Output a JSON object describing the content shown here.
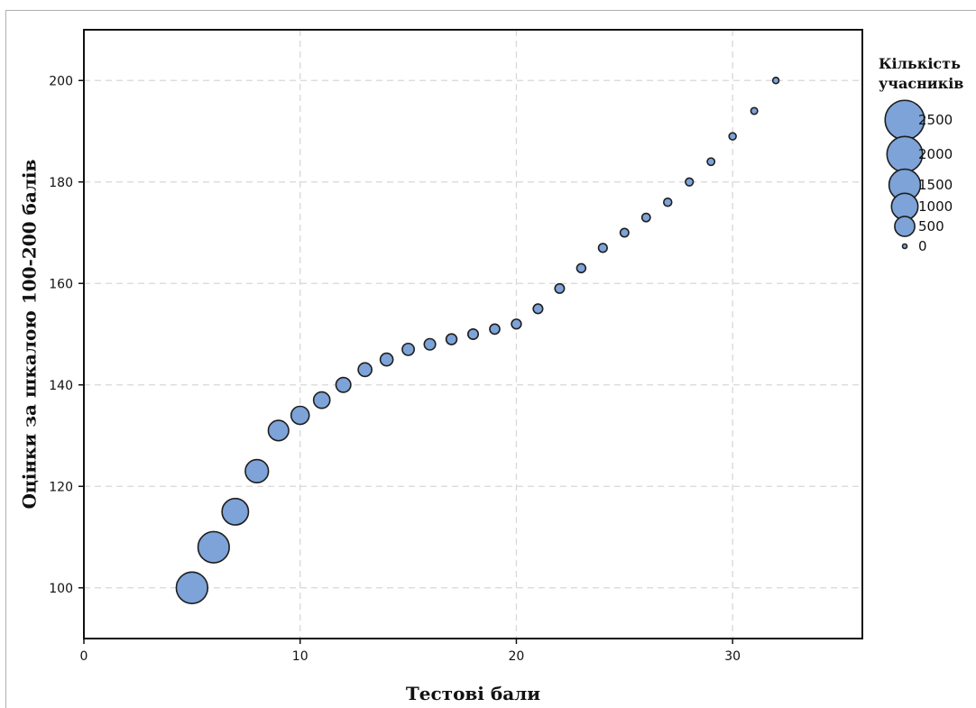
{
  "chart_data": {
    "type": "scatter",
    "subtype": "bubble",
    "title": "",
    "xlabel": "Тестові бали",
    "ylabel": "Оцінки за шкалою 100-200 балів",
    "xlim": [
      0,
      36
    ],
    "ylim": [
      90,
      210
    ],
    "xticks": [
      0,
      10,
      20,
      30
    ],
    "yticks": [
      100,
      120,
      140,
      160,
      180,
      200
    ],
    "grid": true,
    "legend": {
      "title_lines": [
        "Кількість",
        "учасників"
      ],
      "placement": "right",
      "entries": [
        {
          "label": "2500",
          "size": 2500
        },
        {
          "label": "2000",
          "size": 2000
        },
        {
          "label": "1500",
          "size": 1500
        },
        {
          "label": "1000",
          "size": 1000
        },
        {
          "label": "500",
          "size": 500
        },
        {
          "label": "0",
          "size": 0
        }
      ]
    },
    "colors": {
      "bubble_fill": "#7da3d8",
      "bubble_stroke": "#1e1e1e",
      "grid": "#d8d8d8"
    },
    "points": [
      {
        "x": 5,
        "y": 100,
        "size": 1500
      },
      {
        "x": 6,
        "y": 108,
        "size": 1480
      },
      {
        "x": 7,
        "y": 115,
        "size": 1000
      },
      {
        "x": 8,
        "y": 123,
        "size": 720
      },
      {
        "x": 9,
        "y": 131,
        "size": 520
      },
      {
        "x": 10,
        "y": 134,
        "size": 380
      },
      {
        "x": 11,
        "y": 137,
        "size": 290
      },
      {
        "x": 12,
        "y": 140,
        "size": 220
      },
      {
        "x": 13,
        "y": 143,
        "size": 170
      },
      {
        "x": 14,
        "y": 145,
        "size": 140
      },
      {
        "x": 15,
        "y": 147,
        "size": 115
      },
      {
        "x": 16,
        "y": 148,
        "size": 95
      },
      {
        "x": 17,
        "y": 149,
        "size": 80
      },
      {
        "x": 18,
        "y": 150,
        "size": 70
      },
      {
        "x": 19,
        "y": 151,
        "size": 62
      },
      {
        "x": 20,
        "y": 152,
        "size": 56
      },
      {
        "x": 21,
        "y": 155,
        "size": 52
      },
      {
        "x": 22,
        "y": 159,
        "size": 50
      },
      {
        "x": 23,
        "y": 163,
        "size": 40
      },
      {
        "x": 24,
        "y": 167,
        "size": 36
      },
      {
        "x": 25,
        "y": 170,
        "size": 33
      },
      {
        "x": 26,
        "y": 173,
        "size": 30
      },
      {
        "x": 27,
        "y": 176,
        "size": 26
      },
      {
        "x": 28,
        "y": 180,
        "size": 22
      },
      {
        "x": 29,
        "y": 184,
        "size": 18
      },
      {
        "x": 30,
        "y": 189,
        "size": 14
      },
      {
        "x": 31,
        "y": 194,
        "size": 10
      },
      {
        "x": 32,
        "y": 200,
        "size": 6
      }
    ]
  }
}
